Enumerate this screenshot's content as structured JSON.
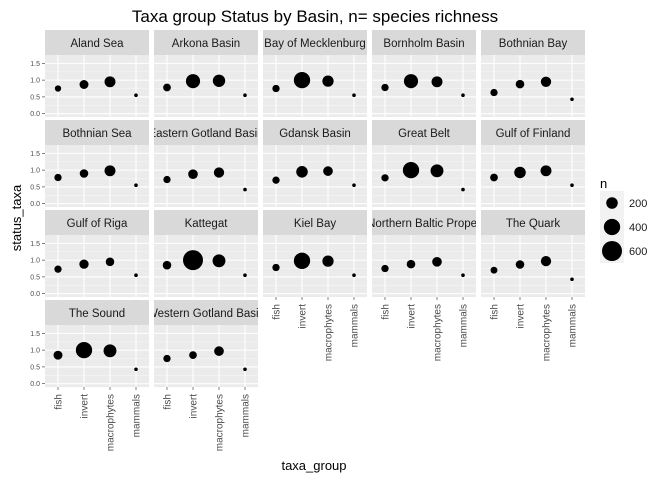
{
  "chart_data": {
    "type": "scatter",
    "title": "Taxa group Status by Basin, n= species richness",
    "xlabel": "taxa_group",
    "ylabel": "status_taxa",
    "categories": [
      "fish",
      "invert",
      "macrophytes",
      "mammals"
    ],
    "y_ticks": [
      "0.0",
      "0.5",
      "1.0",
      "1.5"
    ],
    "ylim": [
      -0.1,
      1.75
    ],
    "grid": true,
    "size_legend": {
      "title": "n",
      "entries": [
        {
          "label": "200",
          "value": 200
        },
        {
          "label": "400",
          "value": 400
        },
        {
          "label": "600",
          "value": 600
        }
      ],
      "placement": "right"
    },
    "facets": [
      {
        "title": "Aland Sea",
        "points": [
          [
            0.75,
            60
          ],
          [
            0.87,
            120
          ],
          [
            0.95,
            180
          ],
          [
            0.55,
            4
          ]
        ]
      },
      {
        "title": "Arkona Basin",
        "points": [
          [
            0.78,
            90
          ],
          [
            0.97,
            300
          ],
          [
            0.98,
            230
          ],
          [
            0.55,
            4
          ]
        ]
      },
      {
        "title": "Bay of Mecklenburg",
        "points": [
          [
            0.75,
            80
          ],
          [
            1.0,
            400
          ],
          [
            0.97,
            190
          ],
          [
            0.55,
            4
          ]
        ]
      },
      {
        "title": "Bornholm Basin",
        "points": [
          [
            0.78,
            80
          ],
          [
            0.97,
            300
          ],
          [
            0.95,
            180
          ],
          [
            0.55,
            4
          ]
        ]
      },
      {
        "title": "Bothnian Bay",
        "points": [
          [
            0.63,
            80
          ],
          [
            0.88,
            110
          ],
          [
            0.95,
            160
          ],
          [
            0.43,
            4
          ]
        ]
      },
      {
        "title": "Bothnian Sea",
        "points": [
          [
            0.78,
            80
          ],
          [
            0.9,
            110
          ],
          [
            0.98,
            180
          ],
          [
            0.55,
            4
          ]
        ]
      },
      {
        "title": "Eastern Gotland Basin",
        "points": [
          [
            0.72,
            80
          ],
          [
            0.88,
            140
          ],
          [
            0.93,
            160
          ],
          [
            0.42,
            4
          ]
        ]
      },
      {
        "title": "Gdansk Basin",
        "points": [
          [
            0.7,
            80
          ],
          [
            0.95,
            200
          ],
          [
            0.97,
            140
          ],
          [
            0.55,
            4
          ]
        ]
      },
      {
        "title": "Great Belt",
        "points": [
          [
            0.77,
            80
          ],
          [
            1.0,
            400
          ],
          [
            0.98,
            250
          ],
          [
            0.42,
            4
          ]
        ]
      },
      {
        "title": "Gulf of Finland",
        "points": [
          [
            0.78,
            90
          ],
          [
            0.93,
            200
          ],
          [
            0.98,
            180
          ],
          [
            0.55,
            4
          ]
        ]
      },
      {
        "title": "Gulf of Riga",
        "points": [
          [
            0.73,
            80
          ],
          [
            0.88,
            130
          ],
          [
            0.95,
            110
          ],
          [
            0.55,
            4
          ]
        ]
      },
      {
        "title": "Kattegat",
        "points": [
          [
            0.85,
            110
          ],
          [
            1.0,
            600
          ],
          [
            0.98,
            250
          ],
          [
            0.55,
            4
          ]
        ]
      },
      {
        "title": "Kiel Bay",
        "points": [
          [
            0.78,
            80
          ],
          [
            0.98,
            400
          ],
          [
            0.97,
            190
          ],
          [
            0.55,
            4
          ]
        ]
      },
      {
        "title": "Northern Baltic Proper",
        "points": [
          [
            0.75,
            80
          ],
          [
            0.88,
            110
          ],
          [
            0.95,
            140
          ],
          [
            0.55,
            4
          ]
        ]
      },
      {
        "title": "The Quark",
        "points": [
          [
            0.7,
            70
          ],
          [
            0.87,
            110
          ],
          [
            0.97,
            160
          ],
          [
            0.43,
            4
          ]
        ]
      },
      {
        "title": "The Sound",
        "points": [
          [
            0.85,
            120
          ],
          [
            1.0,
            400
          ],
          [
            0.98,
            250
          ],
          [
            0.43,
            4
          ]
        ]
      },
      {
        "title": "Western Gotland Basin",
        "points": [
          [
            0.75,
            80
          ],
          [
            0.85,
            90
          ],
          [
            0.97,
            140
          ],
          [
            0.43,
            4
          ]
        ]
      }
    ]
  }
}
